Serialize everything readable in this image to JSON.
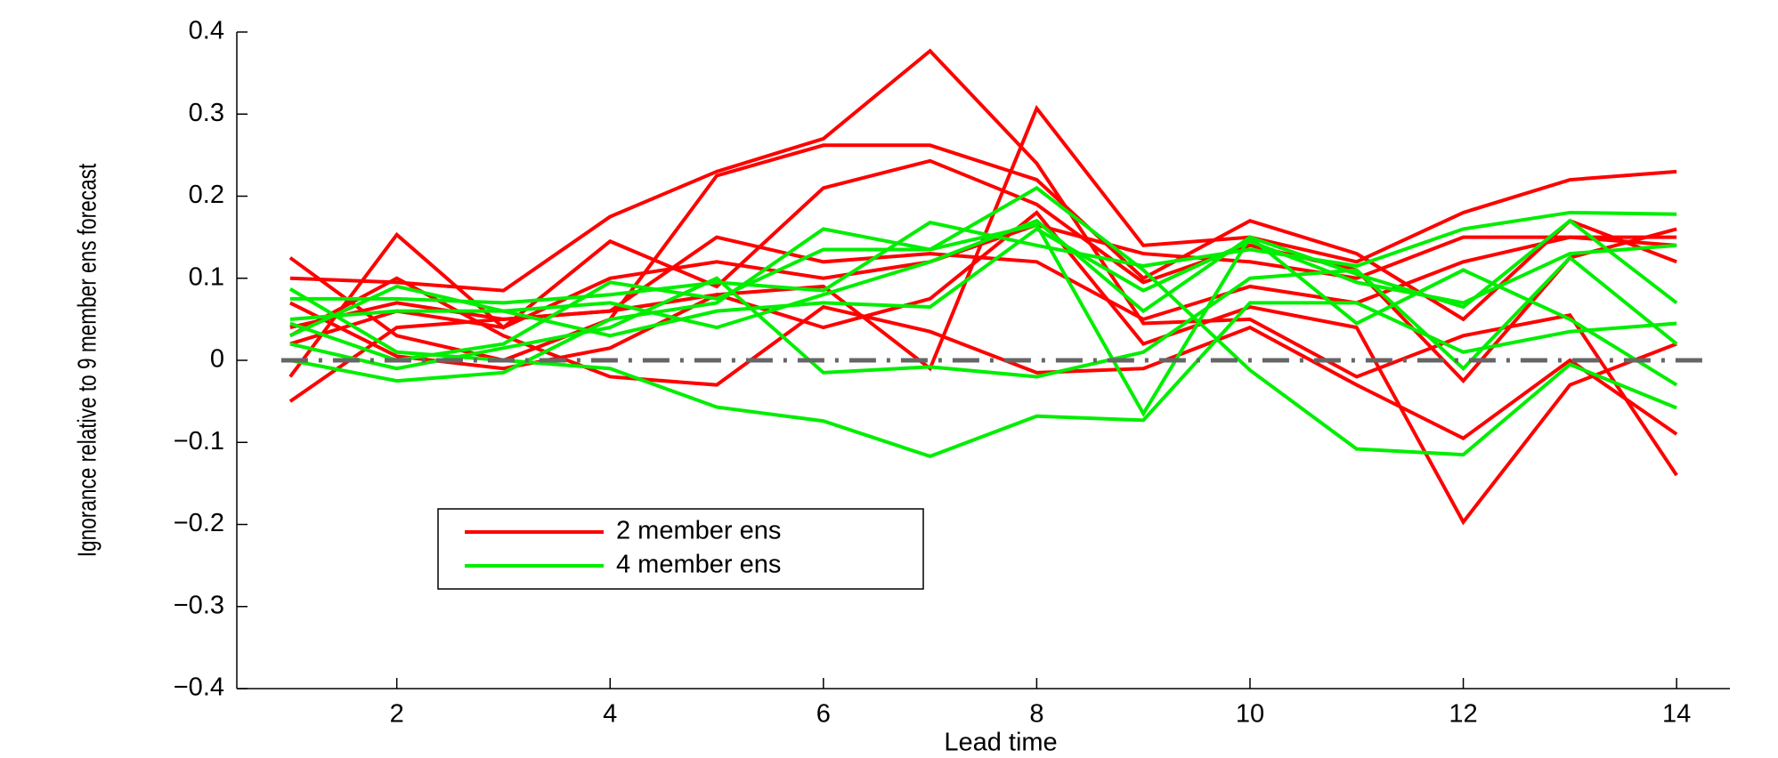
{
  "chart_data": {
    "type": "line",
    "xlabel": "Lead time",
    "ylabel": "Ignorance relative to 9 member ens forecast",
    "x": [
      1,
      2,
      3,
      4,
      5,
      6,
      7,
      8,
      9,
      10,
      11,
      12,
      13,
      14
    ],
    "xlim": [
      0.5,
      14.5
    ],
    "xticks": [
      2,
      4,
      6,
      8,
      10,
      12,
      14
    ],
    "ylim": [
      -0.4,
      0.4
    ],
    "yticks": [
      {
        "value": -0.4,
        "label": "−0.4"
      },
      {
        "value": -0.3,
        "label": "−0.3"
      },
      {
        "value": -0.2,
        "label": "−0.2"
      },
      {
        "value": -0.1,
        "label": "−0.1"
      },
      0,
      0.1,
      0.2,
      0.3,
      0.4
    ],
    "reference_line": {
      "y": 0,
      "color": "#666666"
    },
    "series": [
      {
        "name": "2 member ens",
        "color": "#ff0000",
        "lines": [
          [
            0.1,
            0.095,
            0.085,
            0.175,
            0.23,
            0.27,
            0.377,
            0.24,
            0.045,
            0.05,
            -0.02,
            0.03,
            0.055,
            -0.14
          ],
          [
            -0.05,
            0.04,
            0.05,
            0.06,
            0.08,
            0.09,
            -0.01,
            0.307,
            0.14,
            0.15,
            0.12,
            0.18,
            0.22,
            0.23
          ],
          [
            0.125,
            0.03,
            0.0,
            0.05,
            0.225,
            0.262,
            0.262,
            0.22,
            0.1,
            0.17,
            0.13,
            0.05,
            0.17,
            0.12
          ],
          [
            -0.02,
            0.153,
            0.04,
            0.145,
            0.09,
            0.21,
            0.243,
            0.19,
            0.095,
            0.14,
            0.11,
            -0.025,
            0.125,
            0.16
          ],
          [
            0.07,
            0.005,
            -0.01,
            0.015,
            0.08,
            0.04,
            0.075,
            0.18,
            0.02,
            0.065,
            0.04,
            -0.197,
            -0.03,
            0.02
          ],
          [
            0.03,
            0.1,
            0.03,
            -0.02,
            -0.03,
            0.065,
            0.035,
            -0.015,
            -0.01,
            0.04,
            -0.03,
            -0.095,
            0.0,
            -0.09
          ],
          [
            0.04,
            0.07,
            0.05,
            0.06,
            0.15,
            0.12,
            0.13,
            0.12,
            0.05,
            0.09,
            0.07,
            0.12,
            0.15,
            0.14
          ],
          [
            0.02,
            0.06,
            0.04,
            0.1,
            0.12,
            0.1,
            0.12,
            0.165,
            0.13,
            0.12,
            0.1,
            0.15,
            0.15,
            0.15
          ]
        ]
      },
      {
        "name": "4 member ens",
        "color": "#00ee00",
        "lines": [
          [
            0.087,
            0.01,
            0.0,
            -0.01,
            -0.057,
            -0.074,
            -0.117,
            -0.068,
            -0.073,
            0.07,
            0.07,
            0.01,
            0.035,
            0.045
          ],
          [
            0.0,
            -0.025,
            -0.015,
            0.05,
            0.07,
            0.16,
            0.135,
            0.21,
            0.11,
            -0.012,
            -0.108,
            -0.115,
            -0.005,
            -0.058
          ],
          [
            0.075,
            0.075,
            0.07,
            0.08,
            0.095,
            0.085,
            0.168,
            0.14,
            0.115,
            0.135,
            0.115,
            0.16,
            0.18,
            0.178
          ],
          [
            0.045,
            0.0,
            0.02,
            0.095,
            0.075,
            0.135,
            0.135,
            0.165,
            -0.065,
            0.15,
            0.105,
            0.065,
            0.17,
            0.07
          ],
          [
            0.03,
            0.09,
            0.06,
            0.07,
            0.04,
            0.08,
            0.12,
            0.17,
            0.06,
            0.15,
            0.045,
            0.11,
            0.05,
            -0.03
          ],
          [
            0.02,
            -0.01,
            0.015,
            0.04,
            0.1,
            -0.015,
            -0.008,
            -0.02,
            0.01,
            0.1,
            0.11,
            -0.01,
            0.125,
            0.02
          ],
          [
            0.05,
            0.06,
            0.06,
            0.03,
            0.06,
            0.07,
            0.065,
            0.16,
            0.085,
            0.145,
            0.095,
            0.07,
            0.13,
            0.14
          ]
        ]
      }
    ]
  }
}
